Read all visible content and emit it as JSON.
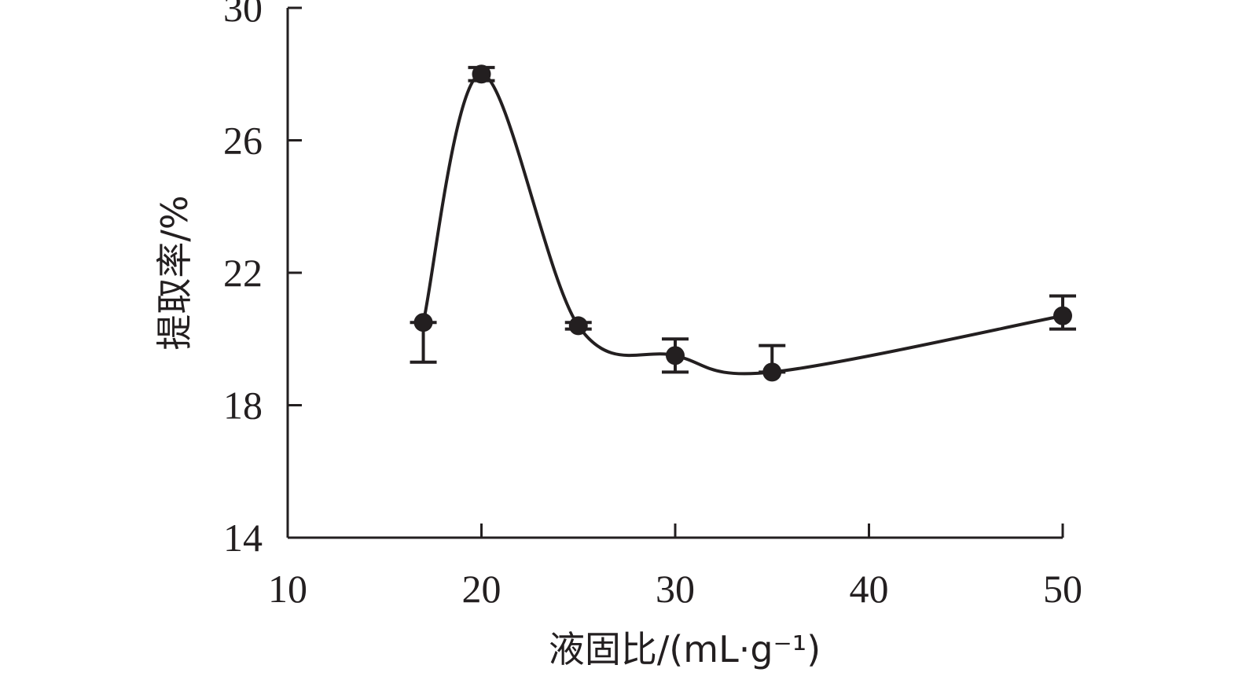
{
  "chart_data": {
    "type": "line",
    "xlabel": "液固比/(mL·g⁻¹)",
    "ylabel": "提取率/%",
    "xlim": [
      10,
      50
    ],
    "ylim": [
      14,
      30
    ],
    "x_ticks": [
      "10",
      "20",
      "30",
      "40",
      "50"
    ],
    "y_ticks": [
      "14",
      "18",
      "22",
      "26",
      "30"
    ],
    "grid": false,
    "legend": "none",
    "smooth": true,
    "series": [
      {
        "x": [
          17,
          20,
          25,
          30,
          35,
          50
        ],
        "y": [
          20.5,
          28.0,
          20.4,
          19.5,
          19.0,
          20.7
        ],
        "err_up": [
          0.0,
          0.2,
          0.1,
          0.5,
          0.8,
          0.6
        ],
        "err_down": [
          1.2,
          0.2,
          0.1,
          0.5,
          0.0,
          0.4
        ]
      }
    ]
  }
}
